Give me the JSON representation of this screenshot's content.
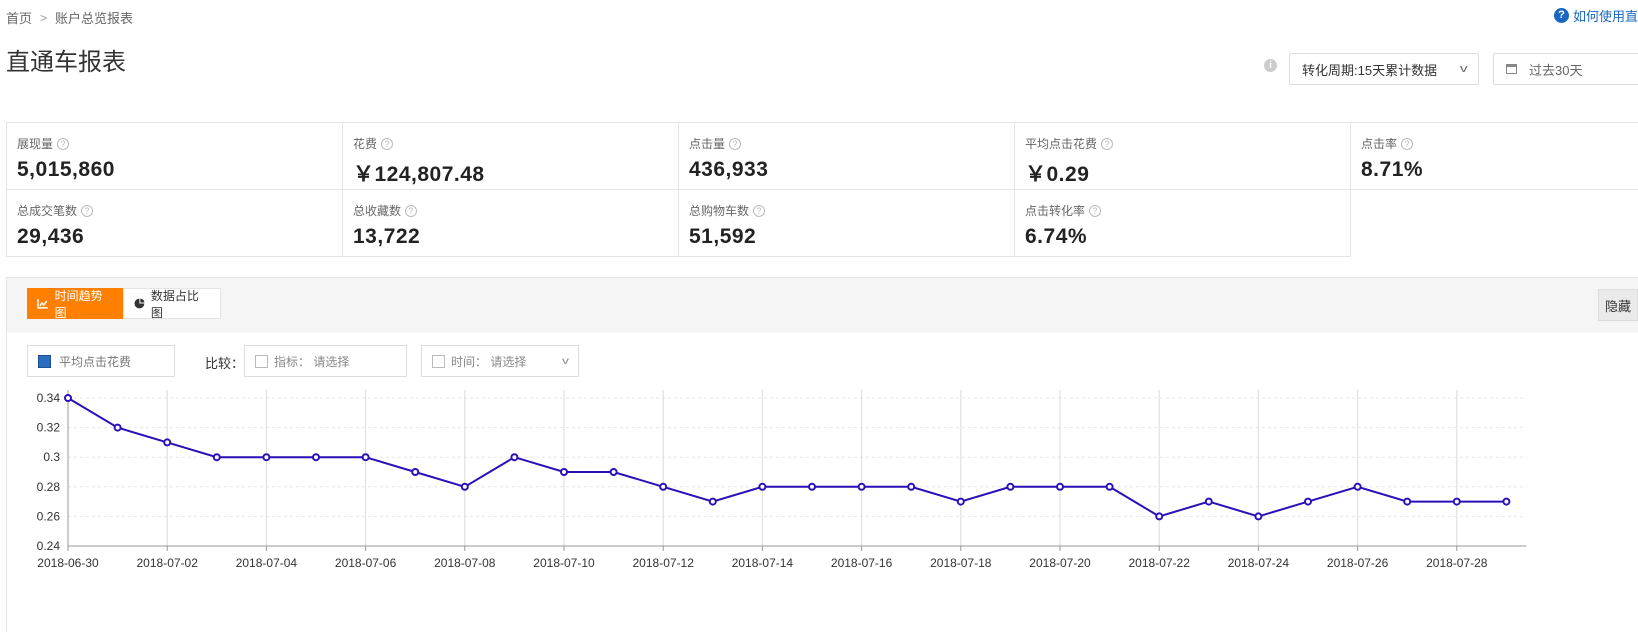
{
  "breadcrumb": {
    "home": "首页",
    "current": "账户总览报表"
  },
  "help": {
    "label": "如何使用直"
  },
  "page_title": "直通车报表",
  "cycle_select": {
    "value": "转化周期:15天累计数据"
  },
  "date_picker": {
    "value": "过去30天"
  },
  "metrics": {
    "row1": [
      {
        "label": "展现量",
        "value": "5,015,860"
      },
      {
        "label": "花费",
        "value": "￥124,807.48"
      },
      {
        "label": "点击量",
        "value": "436,933"
      },
      {
        "label": "平均点击花费",
        "value": "￥0.29"
      },
      {
        "label": "点击率",
        "value": "8.71%"
      }
    ],
    "row2": [
      {
        "label": "总成交笔数",
        "value": "29,436"
      },
      {
        "label": "总收藏数",
        "value": "13,722"
      },
      {
        "label": "总购物车数",
        "value": "51,592"
      },
      {
        "label": "点击转化率",
        "value": "6.74%"
      }
    ]
  },
  "tabs": {
    "trend": "时间趋势图",
    "share": "数据占比图"
  },
  "hide_button": "隐藏",
  "filters": {
    "legend": "平均点击花费",
    "compare_label": "比较：",
    "metric_placeholder": "指标： 请选择",
    "time_placeholder": "时间： 请选择"
  },
  "colors": {
    "accent": "#ff8000",
    "line": "#2b0fb8",
    "legend": "#2d6bbf"
  },
  "chart_data": {
    "type": "line",
    "x": [
      "2018-06-30",
      "2018-07-01",
      "2018-07-02",
      "2018-07-03",
      "2018-07-04",
      "2018-07-05",
      "2018-07-06",
      "2018-07-07",
      "2018-07-08",
      "2018-07-09",
      "2018-07-10",
      "2018-07-11",
      "2018-07-12",
      "2018-07-13",
      "2018-07-14",
      "2018-07-15",
      "2018-07-16",
      "2018-07-17",
      "2018-07-18",
      "2018-07-19",
      "2018-07-20",
      "2018-07-21",
      "2018-07-22",
      "2018-07-23",
      "2018-07-24",
      "2018-07-25",
      "2018-07-26",
      "2018-07-27",
      "2018-07-28",
      "2018-07-29"
    ],
    "x_tick_labels": [
      "2018-06-30",
      "2018-07-02",
      "2018-07-04",
      "2018-07-06",
      "2018-07-08",
      "2018-07-10",
      "2018-07-12",
      "2018-07-14",
      "2018-07-16",
      "2018-07-18",
      "2018-07-20",
      "2018-07-22",
      "2018-07-24",
      "2018-07-26",
      "2018-07-28"
    ],
    "series": [
      {
        "name": "平均点击花费",
        "values": [
          0.34,
          0.32,
          0.31,
          0.3,
          0.3,
          0.3,
          0.3,
          0.29,
          0.28,
          0.3,
          0.29,
          0.29,
          0.28,
          0.27,
          0.28,
          0.28,
          0.28,
          0.28,
          0.27,
          0.28,
          0.28,
          0.28,
          0.26,
          0.27,
          0.26,
          0.27,
          0.28,
          0.27,
          0.27,
          0.27
        ]
      }
    ],
    "ylim": [
      0.24,
      0.34
    ],
    "y_ticks": [
      "0.24",
      "0.26",
      "0.28",
      "0.3",
      "0.32",
      "0.34"
    ],
    "grid": true
  }
}
